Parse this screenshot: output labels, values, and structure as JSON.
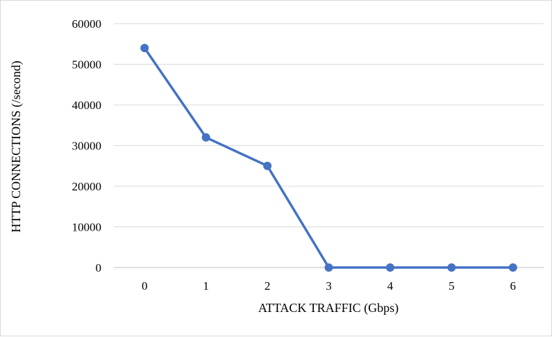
{
  "chart_data": {
    "type": "line",
    "title": "",
    "xlabel": "ATTACK TRAFFIC (Gbps)",
    "ylabel": "HTTP CONNECTIONS (/second)",
    "categories": [
      "0",
      "1",
      "2",
      "3",
      "4",
      "5",
      "6"
    ],
    "y_ticks": [
      "0",
      "10000",
      "20000",
      "30000",
      "40000",
      "50000",
      "60000"
    ],
    "ylim": [
      0,
      60000
    ],
    "grid": "horizontal",
    "legend": "none",
    "series": [
      {
        "color": "#4472c4",
        "values": [
          54000,
          32000,
          25000,
          0,
          0,
          0,
          0
        ]
      }
    ],
    "colors": {
      "line": "#4472c4",
      "grid": "#d9d9d9",
      "axis": "#bfbfbf",
      "frame": "#d9d9d9"
    }
  }
}
